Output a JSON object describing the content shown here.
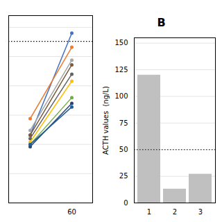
{
  "chart_data": [
    {
      "type": "line",
      "categories": [
        null,
        "60"
      ],
      "series": [
        {
          "color": "#4472C4",
          "values": [
            58,
            145
          ]
        },
        {
          "color": "#ED7D31",
          "values": [
            72,
            133
          ]
        },
        {
          "color": "#A5A5A5",
          "values": [
            62,
            122
          ]
        },
        {
          "color": "#7B5B3A",
          "values": [
            58,
            118
          ]
        },
        {
          "color": "#636363",
          "values": [
            55,
            110
          ]
        },
        {
          "color": "#FFC000",
          "values": [
            52,
            104
          ]
        },
        {
          "color": "#70AD47",
          "values": [
            50,
            90
          ]
        },
        {
          "color": "#264478",
          "values": [
            48,
            85
          ]
        },
        {
          "color": "#255E91",
          "values": [
            50,
            82
          ]
        }
      ],
      "marker": "circle",
      "ylim": [
        0,
        160
      ],
      "yticks": [
        0,
        25,
        50,
        75,
        100,
        125,
        150
      ],
      "grid": true,
      "tick_labels": "x",
      "reference_y": 138
    },
    {
      "type": "bar",
      "title": "B",
      "ylabel": "ACTH values  (ng/L)",
      "categories": [
        "1",
        "2",
        "3"
      ],
      "values": [
        120,
        13,
        27
      ],
      "color": "#C0C0C0",
      "ylim": [
        0,
        155
      ],
      "yticks": [
        0,
        25,
        50,
        75,
        100,
        125,
        150
      ],
      "grid": true,
      "reference_y": 50
    }
  ]
}
